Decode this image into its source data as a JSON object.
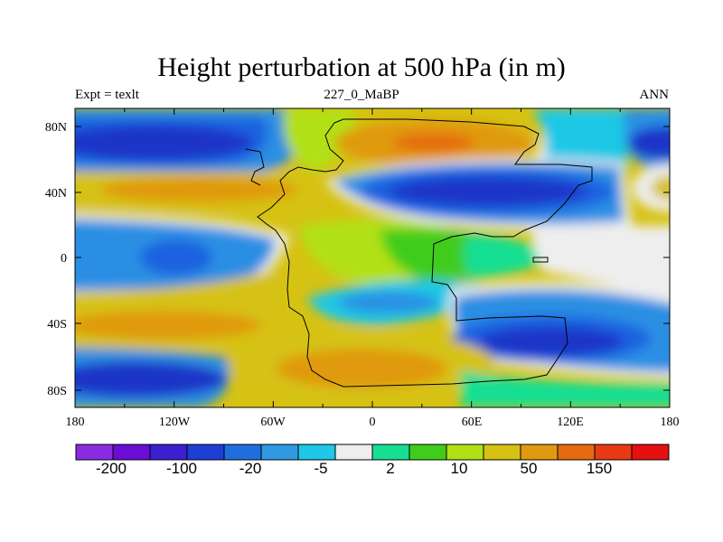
{
  "figure": {
    "title": "Height perturbation at 500 hPa (in m)",
    "left_subtitle": "Expt = texlt",
    "center_subtitle": "227_0_MaBP",
    "right_subtitle": "ANN"
  },
  "map_axes": {
    "lat_ticks": [
      "80N",
      "40N",
      "0",
      "40S",
      "80S"
    ],
    "lon_ticks": [
      "180",
      "120W",
      "60W",
      "0",
      "60E",
      "120E",
      "180"
    ]
  },
  "colorbar": {
    "colors": [
      "#8a2be2",
      "#6a0dd6",
      "#3b1fd0",
      "#1e3fd6",
      "#1f6ee0",
      "#2f9ae2",
      "#1ec8e6",
      "#eeeeee",
      "#17de92",
      "#40cc1a",
      "#b2e017",
      "#d6c213",
      "#e09a10",
      "#e56a10",
      "#e83a14",
      "#e61010"
    ],
    "labels": [
      "-200",
      "-100",
      "-20",
      "-5",
      "2",
      "10",
      "50",
      "150"
    ]
  },
  "map_palette": {
    "dark_blue": "#1f34c8",
    "blue": "#1f62e0",
    "mid_blue": "#2b8fe3",
    "cyan": "#1ec8e6",
    "white": "#eeeeee",
    "teal_green": "#17de92",
    "green": "#40cc1a",
    "yellow_green": "#b2e017",
    "olive_yellow": "#d6c213",
    "orange": "#e09a10",
    "dark_orange": "#e56a10"
  }
}
